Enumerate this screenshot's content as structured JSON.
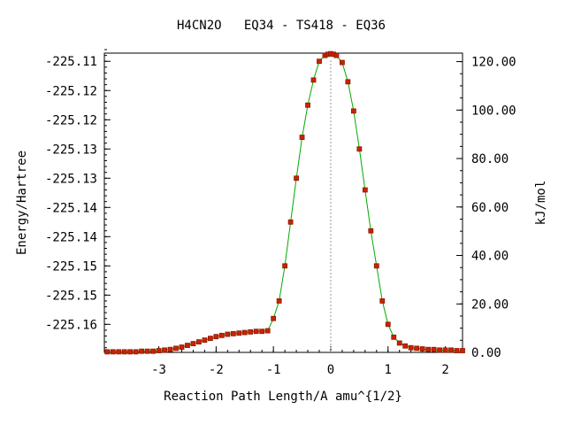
{
  "chart_data": {
    "type": "scatter",
    "title": "H4CN2O   EQ34 - TS418 - EQ36",
    "xlabel": "Reaction Path Length/A amu^{1/2}",
    "ylabel": "Energy/Hartree",
    "y2label": "kJ/mol",
    "xlim": [
      -3.95,
      2.3
    ],
    "ylim": [
      -225.1648,
      -225.1136
    ],
    "y2lim": [
      0,
      123.5
    ],
    "x_ticks": [
      -3,
      -2,
      -1,
      0,
      1,
      2
    ],
    "x_tick_labels": [
      "-3",
      "-2",
      "-1",
      "0",
      "1",
      "2"
    ],
    "y_ticks": [
      -225.16,
      -225.155,
      -225.15,
      -225.145,
      -225.14,
      -225.135,
      -225.13,
      -225.125,
      -225.12,
      -225.115
    ],
    "y_tick_labels": [
      "-225.16",
      "-225.15",
      "-225.15",
      "-225.14",
      "-225.14",
      "-225.13",
      "-225.13",
      "-225.12",
      "-225.12",
      "-225.11"
    ],
    "y2_ticks": [
      0,
      20,
      40,
      60,
      80,
      100,
      120
    ],
    "y2_tick_labels": [
      "0.00",
      "20.00",
      "40.00",
      "60.00",
      "80.00",
      "100.00",
      "120.00"
    ],
    "ts_x": 0,
    "colors": {
      "line": "#00aa00",
      "marker": "#cc2200",
      "marker_edge": "#8a1a00",
      "ts_line": "#999999"
    },
    "series": [
      {
        "x": [
          -3.9,
          -3.8,
          -3.7,
          -3.6,
          -3.5,
          -3.4,
          -3.3,
          -3.2,
          -3.1,
          -3.0,
          -2.9,
          -2.8,
          -2.7,
          -2.6,
          -2.5,
          -2.4,
          -2.3,
          -2.2,
          -2.1,
          -2.0,
          -1.9,
          -1.8,
          -1.7,
          -1.6,
          -1.5,
          -1.4,
          -1.3,
          -1.2,
          -1.1,
          -1.0,
          -0.9,
          -0.8,
          -0.7,
          -0.6,
          -0.5,
          -0.4,
          -0.3,
          -0.2,
          -0.1,
          -0.05,
          0.0,
          0.05,
          0.1,
          0.2,
          0.3,
          0.4,
          0.5,
          0.6,
          0.7,
          0.8,
          0.9,
          1.0,
          1.1,
          1.2,
          1.3,
          1.4,
          1.5,
          1.6,
          1.7,
          1.8,
          1.9,
          2.0,
          2.1,
          2.2,
          2.3
        ],
        "y": [
          -225.1647,
          -225.1647,
          -225.1647,
          -225.1647,
          -225.1647,
          -225.1647,
          -225.1646,
          -225.1646,
          -225.1646,
          -225.1645,
          -225.1644,
          -225.1643,
          -225.1641,
          -225.1639,
          -225.1636,
          -225.1633,
          -225.163,
          -225.1627,
          -225.1624,
          -225.1621,
          -225.1619,
          -225.1617,
          -225.1616,
          -225.1615,
          -225.1614,
          -225.1613,
          -225.1612,
          -225.1612,
          -225.1611,
          -225.159,
          -225.156,
          -225.15,
          -225.1425,
          -225.135,
          -225.128,
          -225.1225,
          -225.1182,
          -225.115,
          -225.114,
          -225.1138,
          -225.1137,
          -225.1138,
          -225.114,
          -225.1152,
          -225.1185,
          -225.1235,
          -225.13,
          -225.137,
          -225.144,
          -225.15,
          -225.156,
          -225.16,
          -225.1622,
          -225.1632,
          -225.1637,
          -225.164,
          -225.1641,
          -225.1642,
          -225.1643,
          -225.1643,
          -225.1644,
          -225.1644,
          -225.1644,
          -225.1645,
          -225.1645
        ]
      }
    ]
  }
}
